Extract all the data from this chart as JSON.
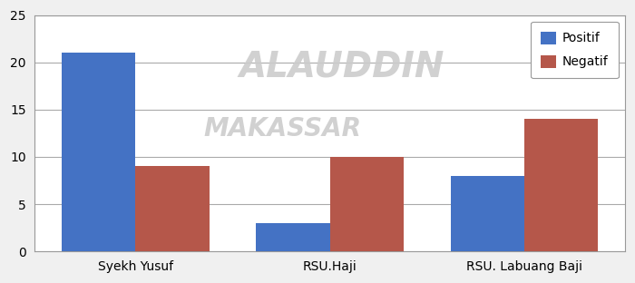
{
  "categories": [
    "Syekh Yusuf",
    "RSU.Haji",
    "RSU. Labuang Baji"
  ],
  "positif": [
    21,
    3,
    8
  ],
  "negatif": [
    9,
    10,
    14
  ],
  "positif_color": "#4472C4",
  "negatif_color": "#B5574A",
  "legend_labels": [
    "Positif",
    "Negatif"
  ],
  "ylim": [
    0,
    25
  ],
  "yticks": [
    0,
    5,
    10,
    15,
    20,
    25
  ],
  "bar_width": 0.38,
  "background_color": "#F0F0F0",
  "plot_bg_color": "#FFFFFF",
  "grid_color": "#AAAAAA",
  "border_color": "#999999",
  "watermark_color": "#CCCCCC",
  "watermark_alpha": 0.9,
  "fig_border_color": "#AAAAAA"
}
